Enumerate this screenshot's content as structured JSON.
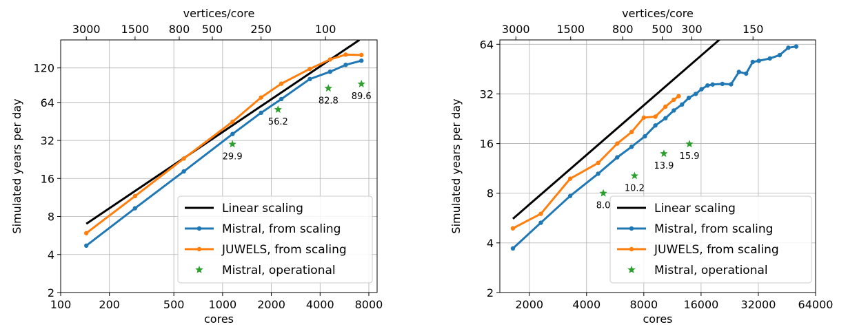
{
  "chart_data": [
    {
      "type": "line",
      "xscale": "log2",
      "yscale": "log2",
      "xlabel": "cores",
      "ylabel": "Simulated years per day",
      "top_xlabel": "vertices/core",
      "xlim": [
        100,
        9000
      ],
      "ylim": [
        2,
        200
      ],
      "xticks": [
        100,
        200,
        500,
        1000,
        2000,
        4000,
        8000
      ],
      "xtick_labels": [
        "100",
        "200",
        "500",
        "1000",
        "2000",
        "4000",
        "8000"
      ],
      "yticks": [
        2,
        4,
        8,
        16,
        32,
        64,
        120
      ],
      "ytick_labels": [
        "2",
        "4",
        "8",
        "16",
        "32",
        "64",
        "120"
      ],
      "top_ticks_cores": [
        144,
        288,
        540,
        864,
        1728,
        4320
      ],
      "top_tick_labels": [
        "3000",
        "1500",
        "800",
        "500",
        "250",
        "100"
      ],
      "grid": true,
      "legend_position": "lower-right",
      "series": [
        {
          "name": "Linear scaling",
          "kind": "line",
          "color": "#000000",
          "x": [
            144,
            7000
          ],
          "y": [
            7,
            200
          ]
        },
        {
          "name": "Mistral, from scaling",
          "kind": "line",
          "color": "#1f77b4",
          "x": [
            144,
            288,
            576,
            1152,
            1728,
            2304,
            3456,
            4608,
            5760,
            7200
          ],
          "y": [
            4.7,
            9.3,
            18.2,
            36,
            53,
            68,
            98,
            112,
            127,
            137
          ]
        },
        {
          "name": "JUWELS, from scaling",
          "kind": "line",
          "color": "#ff7f0e",
          "x": [
            144,
            288,
            576,
            1152,
            1728,
            2304,
            3456,
            4608,
            5760,
            7200
          ],
          "y": [
            5.9,
            11.6,
            23,
            45,
            70,
            90,
            118,
            140,
            153,
            152
          ]
        },
        {
          "name": "Mistral, operational",
          "kind": "scatter",
          "color": "#2ca02c",
          "x": [
            1150,
            2200,
            4500,
            7200
          ],
          "y": [
            29.9,
            56.2,
            82.8,
            89.6
          ],
          "labels": [
            "29.9",
            "56.2",
            "82.8",
            "89.6"
          ]
        }
      ]
    },
    {
      "type": "line",
      "xscale": "log2",
      "yscale": "log2",
      "xlabel": "cores",
      "ylabel": "Simulated years per day",
      "top_xlabel": "vertices/core",
      "xlim": [
        1400,
        64000
      ],
      "ylim": [
        2,
        68
      ],
      "xticks": [
        2000,
        4000,
        8000,
        16000,
        32000,
        64000
      ],
      "xtick_labels": [
        "2000",
        "4000",
        "8000",
        "16000",
        "32000",
        "64000"
      ],
      "yticks": [
        2,
        4,
        8,
        16,
        32,
        64
      ],
      "ytick_labels": [
        "2",
        "4",
        "8",
        "16",
        "32",
        "64"
      ],
      "top_ticks_cores": [
        1700,
        3300,
        6200,
        10000,
        14300,
        30000
      ],
      "top_tick_labels": [
        "3000",
        "1500",
        "800",
        "500",
        "300",
        "150"
      ],
      "grid": true,
      "legend_position": "lower-right",
      "series": [
        {
          "name": "Linear scaling",
          "kind": "line",
          "color": "#000000",
          "x": [
            1640,
            20500
          ],
          "y": [
            5.6,
            70
          ]
        },
        {
          "name": "Mistral, from scaling",
          "kind": "line",
          "color": "#1f77b4",
          "x": [
            1640,
            2300,
            3280,
            4600,
            5800,
            6900,
            8100,
            9200,
            10400,
            11500,
            12700,
            13800,
            15000,
            16100,
            17300,
            18400,
            20700,
            23000,
            25300,
            27600,
            29900,
            32200,
            36800,
            41400,
            46000,
            50600
          ],
          "y": [
            3.7,
            5.3,
            7.7,
            10.5,
            13.2,
            15.3,
            17.7,
            20.6,
            22.8,
            25.4,
            27.6,
            30.3,
            32,
            34.2,
            36,
            36.5,
            36.8,
            36.6,
            43.5,
            42.5,
            50,
            50.8,
            52.5,
            55,
            61,
            62
          ]
        },
        {
          "name": "JUWELS, from scaling",
          "kind": "line",
          "color": "#ff7f0e",
          "x": [
            1640,
            2300,
            3280,
            4600,
            5800,
            6900,
            8000,
            9200,
            10400,
            11500,
            12200
          ],
          "y": [
            4.9,
            6,
            9.8,
            12.2,
            16,
            18.8,
            23,
            23.3,
            26.8,
            29.5,
            31
          ]
        },
        {
          "name": "Mistral, operational",
          "kind": "scatter",
          "color": "#2ca02c",
          "x": [
            4900,
            7150,
            10200,
            13900
          ],
          "y": [
            8.0,
            10.2,
            13.9,
            15.9
          ],
          "labels": [
            "8.0",
            "10.2",
            "13.9",
            "15.9"
          ]
        }
      ]
    }
  ]
}
